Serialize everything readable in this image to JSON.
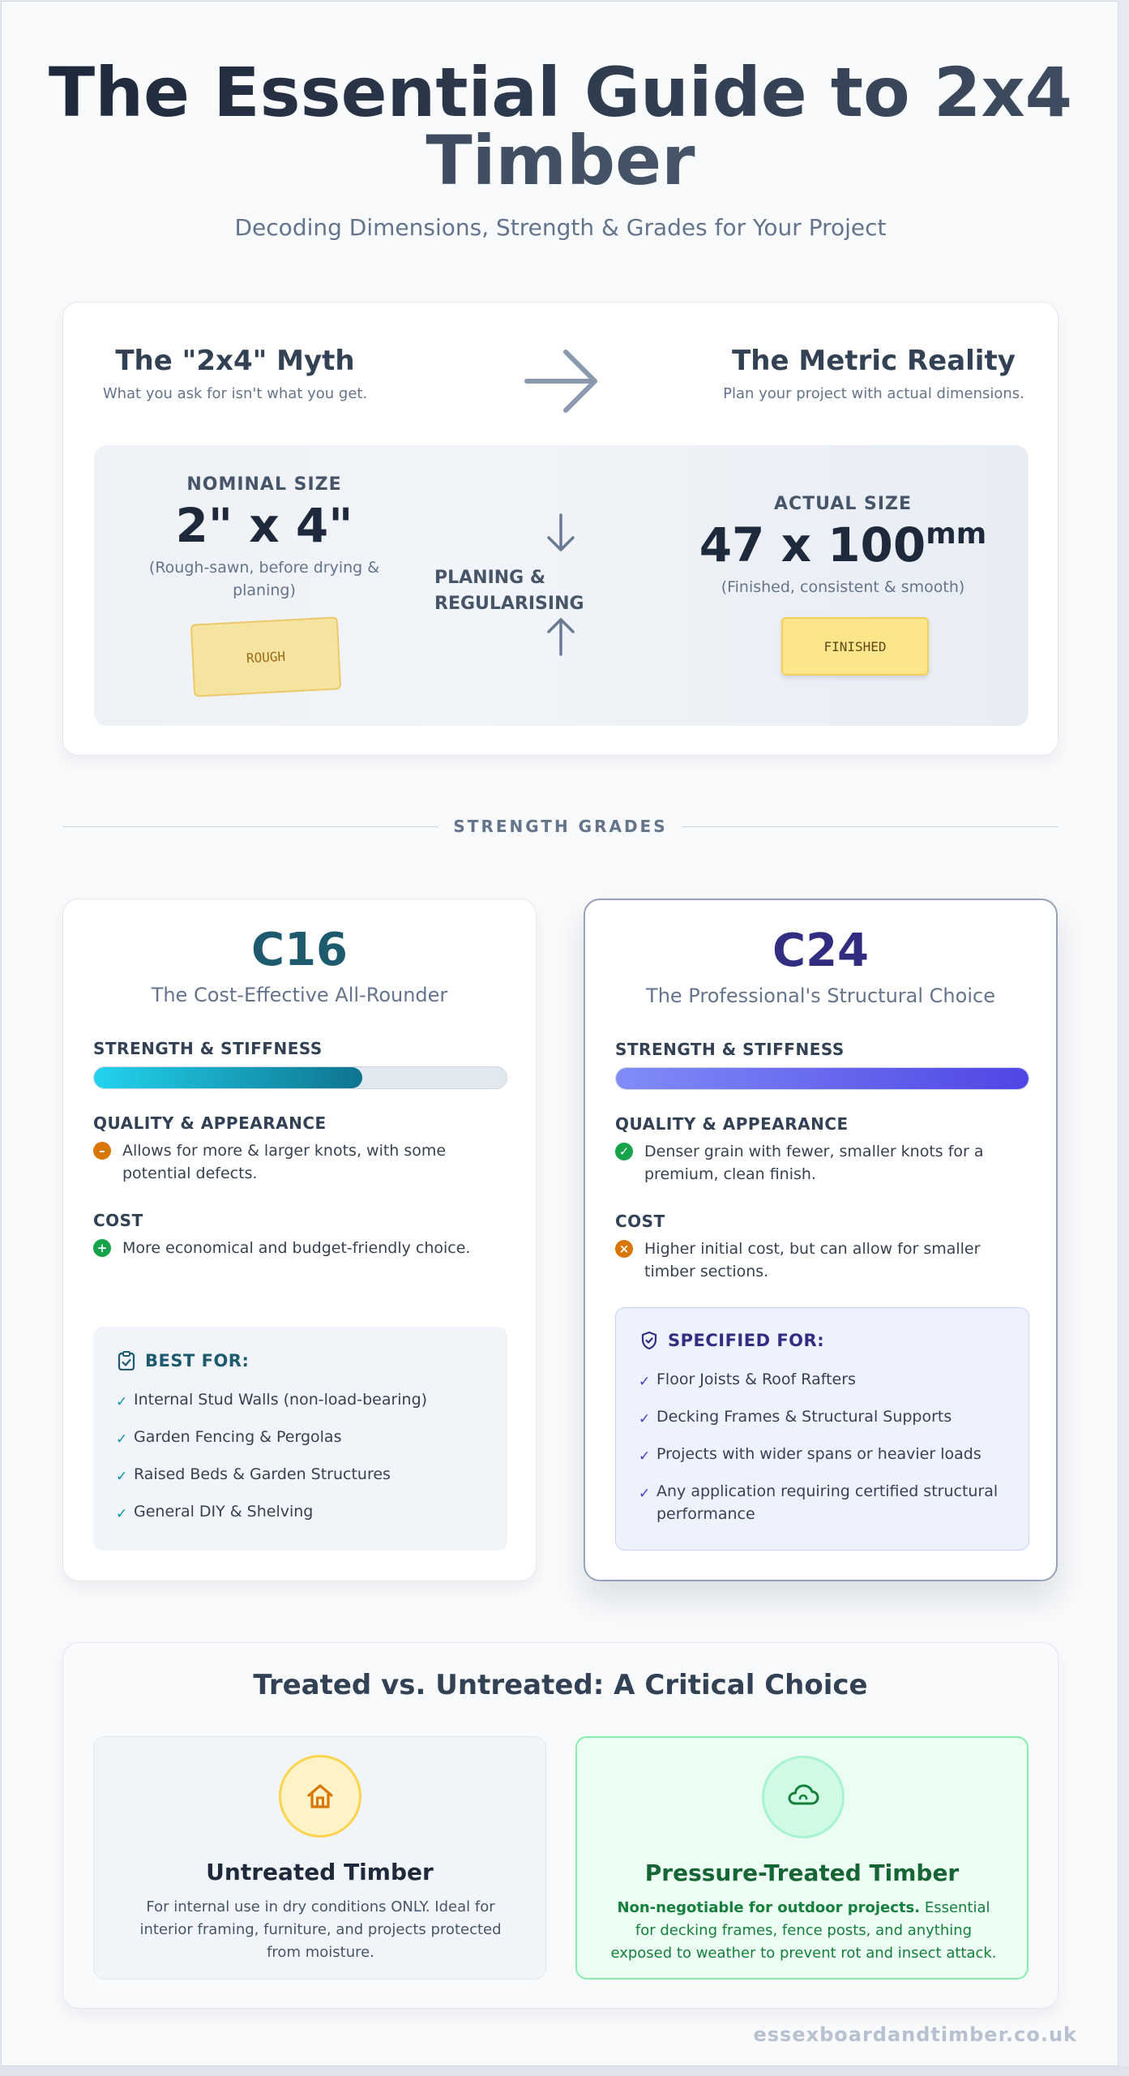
{
  "header": {
    "title": "The Essential Guide to 2x4 Timber",
    "subtitle": "Decoding Dimensions, Strength & Grades for Your Project"
  },
  "myth": {
    "left_heading": "The \"2x4\" Myth",
    "left_sub": "What you ask for isn't what you get.",
    "right_heading": "The Metric Reality",
    "right_sub": "Plan your project with actual dimensions.",
    "nominal": {
      "label": "NOMINAL SIZE",
      "value": "2\" x 4\"",
      "note": "(Rough-sawn, before drying & planing)",
      "tag": "ROUGH"
    },
    "process": {
      "label_line1": "PLANING &",
      "label_line2": "REGULARISING"
    },
    "actual": {
      "label": "ACTUAL SIZE",
      "value": "47 x 100",
      "unit": "mm",
      "note": "(Finished, consistent & smooth)",
      "tag": "FINISHED"
    }
  },
  "section_divider": "STRENGTH GRADES",
  "grades": {
    "c16": {
      "name": "C16",
      "subtitle": "The Cost-Effective All-Rounder",
      "color": "#1e5a6e",
      "strength_label": "STRENGTH & STIFFNESS",
      "strength_level": 0.65,
      "quality_label": "QUALITY & APPEARANCE",
      "quality_text": "Allows for more & larger knots, with some potential defects.",
      "quality_icon": "minus-circle-icon",
      "cost_label": "COST",
      "cost_text": "More economical and budget-friendly choice.",
      "cost_icon": "plus-circle-icon",
      "best_heading": "BEST FOR:",
      "best_items": [
        "Internal Stud Walls (non-load-bearing)",
        "Garden Fencing & Pergolas",
        "Raised Beds & Garden Structures",
        "General DIY & Shelving"
      ]
    },
    "c24": {
      "name": "C24",
      "subtitle": "The Professional's Structural Choice",
      "color": "#312e81",
      "strength_label": "STRENGTH & STIFFNESS",
      "strength_level": 1.0,
      "quality_label": "QUALITY & APPEARANCE",
      "quality_text": "Denser grain with fewer, smaller knots for a premium, clean finish.",
      "quality_icon": "check-circle-icon",
      "cost_label": "COST",
      "cost_text": "Higher initial cost, but can allow for smaller timber sections.",
      "cost_icon": "x-circle-icon",
      "best_heading": "SPECIFIED FOR:",
      "best_items": [
        "Floor Joists & Roof Rafters",
        "Decking Frames & Structural Supports",
        "Projects with wider spans or heavier loads",
        "Any application requiring certified structural performance"
      ]
    }
  },
  "treatment": {
    "title": "Treated vs. Untreated: A Critical Choice",
    "untreated": {
      "heading": "Untreated Timber",
      "text": "For internal use in dry conditions ONLY. Ideal for interior framing, furniture, and projects protected from moisture.",
      "icon": "house-icon"
    },
    "pressure": {
      "heading": "Pressure-Treated Timber",
      "lead": "Non-negotiable for outdoor projects.",
      "text": " Essential for decking frames, fence posts, and anything exposed to weather to prevent rot and insect attack.",
      "icon": "cloud-rain-icon"
    }
  },
  "footer": {
    "site": "essexboardandtimber.co.uk"
  }
}
